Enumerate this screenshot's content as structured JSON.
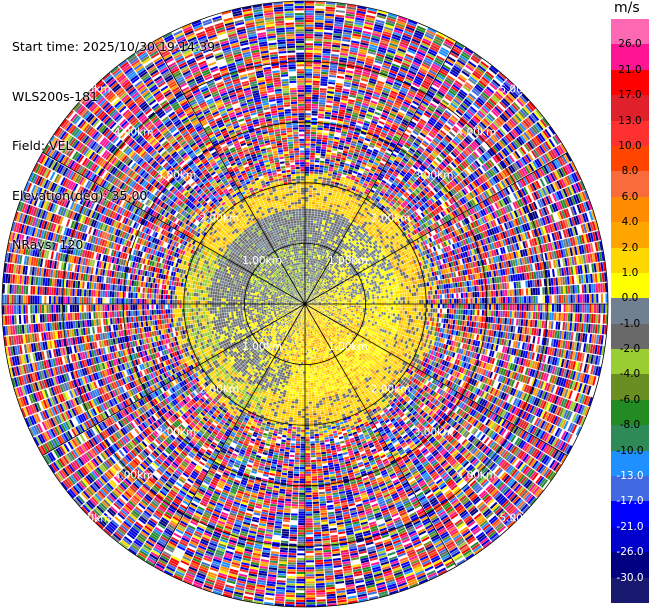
{
  "header": {
    "start_time": "Start time: 2025/10/30 19:14:39",
    "instrument": "WLS200s-181",
    "field": "Field: VEL",
    "elevation": "Elevation(deg): 35.00",
    "nrays": "NRays: 120"
  },
  "colorbar": {
    "unit": "m/s",
    "levels": [
      "26.0",
      "21.0",
      "17.0",
      "13.0",
      "10.0",
      "8.0",
      "6.0",
      "4.0",
      "2.0",
      "1.0",
      "0.0",
      "-1.0",
      "-2.0",
      "-4.0",
      "-6.0",
      "-8.0",
      "-10.0",
      "-13.0",
      "-17.0",
      "-21.0",
      "-26.0",
      "-30.0"
    ],
    "colors": [
      "#ff69b4",
      "#ff1493",
      "#ff0000",
      "#e0202a",
      "#ff3030",
      "#ff4500",
      "#fa6b3b",
      "#ff8c00",
      "#ffa500",
      "#ffd700",
      "#ffff00",
      "#708090",
      "#696969",
      "#9acd32",
      "#6b8e23",
      "#228b22",
      "#2e8b57",
      "#1e90ff",
      "#4169e1",
      "#0000ff",
      "#0000cd",
      "#000080",
      "#191970"
    ]
  },
  "chart_data": {
    "type": "ppi",
    "field": "VEL",
    "elevation_deg": 35.0,
    "n_rays": 120,
    "range_rings_km": [
      1,
      2,
      3,
      4,
      5
    ],
    "range_ring_labels": [
      "1.00km",
      "2.00km",
      "3.00km",
      "4.00km",
      "5.00km"
    ],
    "max_range_km": 5.0,
    "spokes_deg": [
      0,
      30,
      60,
      90,
      120,
      150,
      180,
      210,
      240,
      270,
      300,
      330
    ],
    "grid": true,
    "colorbar_range": [
      -30,
      26
    ],
    "description_of_field": {
      "inner_region_km": [
        0,
        1.0
      ],
      "inner_values_ms": [
        -4.0,
        6.0
      ],
      "middle_region_km": [
        1.0,
        2.0
      ],
      "middle_values_ms": [
        -2.0,
        4.0
      ],
      "outer_noise_region_km": [
        2.2,
        5.0
      ],
      "outer_values_ms": [
        -30.0,
        26.0
      ]
    }
  }
}
